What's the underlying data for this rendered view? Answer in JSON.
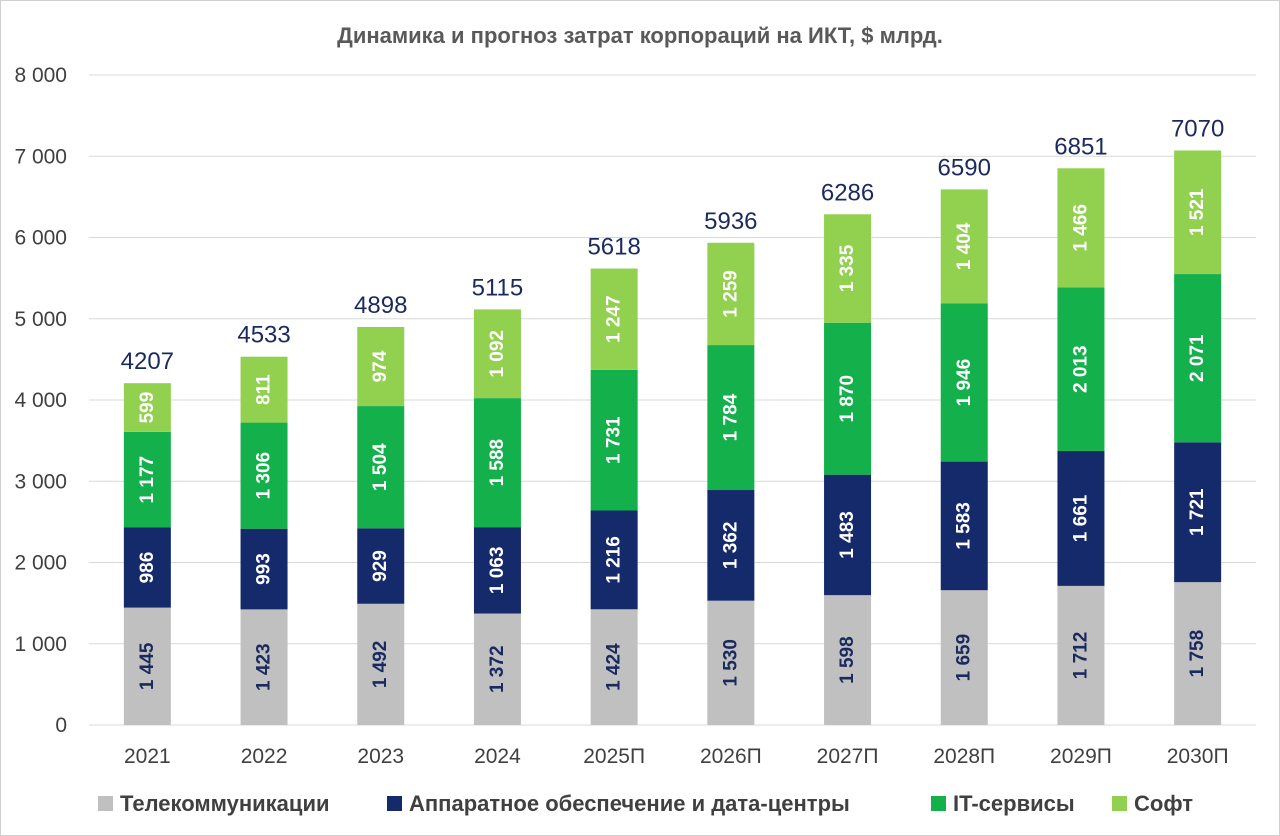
{
  "chart_data": {
    "type": "bar",
    "stacked": true,
    "title": "Динамика и прогноз затрат корпораций на ИКТ,  $ млрд.",
    "categories": [
      "2021",
      "2022",
      "2023",
      "2024",
      "2025П",
      "2026П",
      "2027П",
      "2028П",
      "2029П",
      "2030П"
    ],
    "ylim": [
      0,
      8000
    ],
    "yticks": [
      0,
      1000,
      2000,
      3000,
      4000,
      5000,
      6000,
      7000,
      8000
    ],
    "ytick_labels": [
      "0",
      "1 000",
      "2 000",
      "3 000",
      "4 000",
      "5 000",
      "6 000",
      "7 000",
      "8 000"
    ],
    "grid": true,
    "legend_position": "bottom",
    "series": [
      {
        "name": "Телекоммуникации",
        "color": "#c0c0c0",
        "label_color": "#1b2a5e",
        "values": [
          1445,
          1423,
          1492,
          1372,
          1424,
          1530,
          1598,
          1659,
          1712,
          1758
        ],
        "labels": [
          "1 445",
          "1 423",
          "1 492",
          "1 372",
          "1 424",
          "1 530",
          "1 598",
          "1 659",
          "1 712",
          "1 758"
        ]
      },
      {
        "name": "Аппаратное обеспечение и дата-центры",
        "color": "#142a6b",
        "label_color": "#ffffff",
        "values": [
          986,
          993,
          929,
          1063,
          1216,
          1362,
          1483,
          1583,
          1661,
          1721
        ],
        "labels": [
          "986",
          "993",
          "929",
          "1 063",
          "1 216",
          "1 362",
          "1 483",
          "1 583",
          "1 661",
          "1 721"
        ]
      },
      {
        "name": "IT-сервисы",
        "color": "#13b04b",
        "label_color": "#ffffff",
        "values": [
          1177,
          1306,
          1504,
          1588,
          1731,
          1784,
          1870,
          1946,
          2013,
          2071
        ],
        "labels": [
          "1 177",
          "1 306",
          "1 504",
          "1 588",
          "1 731",
          "1 784",
          "1 870",
          "1 946",
          "2 013",
          "2 071"
        ]
      },
      {
        "name": "Софт",
        "color": "#92d050",
        "label_color": "#ffffff",
        "values": [
          599,
          811,
          974,
          1092,
          1247,
          1259,
          1335,
          1404,
          1466,
          1521
        ],
        "labels": [
          "599",
          "811",
          "974",
          "1 092",
          "1 247",
          "1 259",
          "1 335",
          "1 404",
          "1 466",
          "1 521"
        ]
      }
    ],
    "totals": [
      "4207",
      "4533",
      "4898",
      "5115",
      "5618",
      "5936",
      "6286",
      "6590",
      "6851",
      "7070"
    ]
  }
}
